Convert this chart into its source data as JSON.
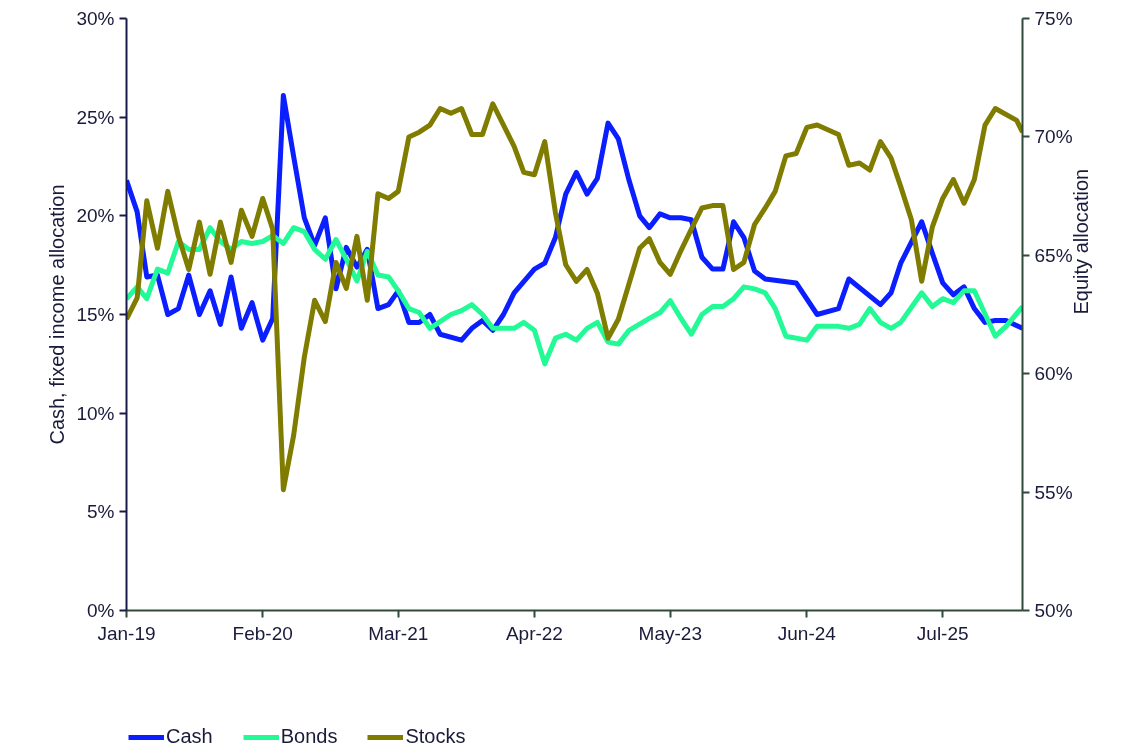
{
  "chart_data": {
    "type": "line",
    "xlabel": null,
    "ylabel": "Cash, fixed income allocation",
    "y2label": "Equity allocation",
    "xlim": [
      "2019-01",
      "2026-02-18"
    ],
    "xticks": [
      {
        "value": "2019-01",
        "label": "Jan-19"
      },
      {
        "value": "2020-02",
        "label": "Feb-20"
      },
      {
        "value": "2021-03",
        "label": "Mar-21"
      },
      {
        "value": "2022-04",
        "label": "Apr-22"
      },
      {
        "value": "2023-05",
        "label": "May-23"
      },
      {
        "value": "2024-06",
        "label": "Jun-24"
      },
      {
        "value": "2025-07",
        "label": "Jul-25"
      }
    ],
    "ylim": [
      0,
      30
    ],
    "yticks": [
      {
        "value": 0,
        "label": "0%"
      },
      {
        "value": 5,
        "label": "5%"
      },
      {
        "value": 10,
        "label": "10%"
      },
      {
        "value": 15,
        "label": "15%"
      },
      {
        "value": 20,
        "label": "20%"
      },
      {
        "value": 25,
        "label": "25%"
      },
      {
        "value": 30,
        "label": "30%"
      }
    ],
    "y2lim": [
      50,
      75
    ],
    "y2ticks": [
      {
        "value": 50,
        "label": "50%"
      },
      {
        "value": 55,
        "label": "55%"
      },
      {
        "value": 60,
        "label": "60%"
      },
      {
        "value": 65,
        "label": "65%"
      },
      {
        "value": 70,
        "label": "70%"
      },
      {
        "value": 75,
        "label": "75%"
      }
    ],
    "grid": false,
    "legend": "bottom left",
    "marker": "none",
    "line_style": "solid",
    "series": [
      {
        "name": "Cash",
        "color": "#0a1eff",
        "x": [
          "2019-01",
          "2019-02",
          "2019-03",
          "2019-04",
          "2019-05",
          "2019-06",
          "2019-07",
          "2019-08",
          "2019-09",
          "2019-10",
          "2019-11",
          "2019-12",
          "2020-01",
          "2020-02",
          "2020-03",
          "2020-04",
          "2020-05",
          "2020-06",
          "2020-07",
          "2020-08",
          "2020-09",
          "2020-10",
          "2020-11",
          "2020-12",
          "2021-01",
          "2021-02",
          "2021-03",
          "2021-04",
          "2021-05",
          "2021-06",
          "2021-07",
          "2021-09",
          "2021-10",
          "2021-11",
          "2021-12",
          "2022-01",
          "2022-02",
          "2022-04",
          "2022-05",
          "2022-06",
          "2022-07",
          "2022-08",
          "2022-09",
          "2022-10",
          "2022-11",
          "2022-12",
          "2023-01",
          "2023-02",
          "2023-03",
          "2023-04",
          "2023-05",
          "2023-06",
          "2023-07",
          "2023-08",
          "2023-09",
          "2023-10",
          "2023-11",
          "2023-12",
          "2024-01",
          "2024-02",
          "2024-05",
          "2024-07",
          "2024-09",
          "2024-10",
          "2025-01",
          "2025-02",
          "2025-03",
          "2025-05",
          "2025-06",
          "2025-07",
          "2025-08",
          "2025-09",
          "2025-10",
          "2025-11",
          "2025-12",
          "2026-01",
          "2026-02-18"
        ],
        "values": [
          21.8,
          20.2,
          16.9,
          17.0,
          15.0,
          15.3,
          17.0,
          15.0,
          16.2,
          14.5,
          16.9,
          14.3,
          15.6,
          13.7,
          14.8,
          26.1,
          23.0,
          19.9,
          18.5,
          19.9,
          16.3,
          18.4,
          17.4,
          18.3,
          15.3,
          15.5,
          16.2,
          14.6,
          14.6,
          15.0,
          14.0,
          13.7,
          14.3,
          14.7,
          14.2,
          15.0,
          16.1,
          17.3,
          17.6,
          18.9,
          21.1,
          22.2,
          21.1,
          21.9,
          24.7,
          23.9,
          21.8,
          20.0,
          19.4,
          20.1,
          19.9,
          19.9,
          19.8,
          17.9,
          17.3,
          17.3,
          19.7,
          18.9,
          17.2,
          16.8,
          16.6,
          15.0,
          15.3,
          16.8,
          15.5,
          16.1,
          17.6,
          19.7,
          18.1,
          16.6,
          16.0,
          16.4,
          15.3,
          14.6,
          14.7,
          14.7,
          14.3
        ]
      },
      {
        "name": "Bonds",
        "color": "#22fa96",
        "x": [
          "2019-01",
          "2019-02",
          "2019-03",
          "2019-04",
          "2019-05",
          "2019-06",
          "2019-07",
          "2019-08",
          "2019-09",
          "2019-10",
          "2019-11",
          "2019-12",
          "2020-01",
          "2020-02",
          "2020-03",
          "2020-04",
          "2020-05",
          "2020-06",
          "2020-07",
          "2020-08",
          "2020-09",
          "2020-10",
          "2020-11",
          "2020-12",
          "2021-01",
          "2021-02",
          "2021-03",
          "2021-04",
          "2021-05",
          "2021-06",
          "2021-08",
          "2021-09",
          "2021-10",
          "2021-11",
          "2021-12",
          "2022-02",
          "2022-03",
          "2022-04",
          "2022-05",
          "2022-06",
          "2022-07",
          "2022-08",
          "2022-09",
          "2022-10",
          "2022-11",
          "2022-12",
          "2023-01",
          "2023-03",
          "2023-04",
          "2023-05",
          "2023-06",
          "2023-07",
          "2023-08",
          "2023-09",
          "2023-10",
          "2023-11",
          "2023-12",
          "2024-01",
          "2024-02",
          "2024-03",
          "2024-04",
          "2024-06",
          "2024-07",
          "2024-09",
          "2024-10",
          "2024-11",
          "2024-12",
          "2025-01",
          "2025-02",
          "2025-03",
          "2025-05",
          "2025-06",
          "2025-07",
          "2025-08",
          "2025-09",
          "2025-10",
          "2025-12",
          "2026-01",
          "2026-02-18"
        ],
        "values": [
          15.8,
          16.4,
          15.8,
          17.3,
          17.1,
          18.7,
          18.3,
          18.3,
          19.4,
          18.7,
          18.3,
          18.7,
          18.6,
          18.7,
          19.0,
          18.6,
          19.4,
          19.2,
          18.3,
          17.8,
          18.8,
          17.8,
          16.7,
          18.2,
          17.0,
          16.9,
          16.2,
          15.3,
          15.1,
          14.3,
          15.0,
          15.2,
          15.5,
          15.0,
          14.3,
          14.3,
          14.6,
          14.2,
          12.5,
          13.8,
          14.0,
          13.7,
          14.3,
          14.6,
          13.6,
          13.5,
          14.2,
          14.8,
          15.1,
          15.7,
          14.8,
          14.0,
          15.0,
          15.4,
          15.4,
          15.8,
          16.4,
          16.3,
          16.1,
          15.3,
          13.9,
          13.7,
          14.4,
          14.4,
          14.3,
          14.5,
          15.3,
          14.6,
          14.3,
          14.6,
          16.1,
          15.4,
          15.8,
          15.6,
          16.2,
          16.2,
          13.9,
          14.4,
          15.4
        ]
      },
      {
        "name": "Stocks",
        "color": "#7f7c00",
        "axis": "y2",
        "x": [
          "2019-01",
          "2019-02",
          "2019-03",
          "2019-04",
          "2019-05",
          "2019-06",
          "2019-07",
          "2019-08",
          "2019-09",
          "2019-10",
          "2019-11",
          "2019-12",
          "2020-01",
          "2020-02",
          "2020-03",
          "2020-04",
          "2020-05",
          "2020-06",
          "2020-07",
          "2020-08",
          "2020-09",
          "2020-10",
          "2020-11",
          "2020-12",
          "2021-01",
          "2021-02",
          "2021-03",
          "2021-04",
          "2021-05",
          "2021-06",
          "2021-07",
          "2021-08",
          "2021-09",
          "2021-10",
          "2021-11",
          "2021-12",
          "2022-02",
          "2022-03",
          "2022-04",
          "2022-05",
          "2022-06",
          "2022-07",
          "2022-08",
          "2022-09",
          "2022-10",
          "2022-11",
          "2022-12",
          "2023-01",
          "2023-02",
          "2023-03",
          "2023-04",
          "2023-05",
          "2023-06",
          "2023-07",
          "2023-08",
          "2023-09",
          "2023-10",
          "2023-11",
          "2023-12",
          "2024-01",
          "2024-02",
          "2024-03",
          "2024-04",
          "2024-05",
          "2024-06",
          "2024-07",
          "2024-09",
          "2024-10",
          "2024-11",
          "2024-12",
          "2025-01",
          "2025-02",
          "2025-03",
          "2025-04",
          "2025-05",
          "2025-06",
          "2025-07",
          "2025-08",
          "2025-09",
          "2025-10",
          "2025-11",
          "2025-12",
          "2026-02",
          "2026-02-18"
        ],
        "values": [
          62.3,
          63.2,
          67.3,
          65.3,
          67.7,
          65.8,
          64.4,
          66.4,
          64.2,
          66.4,
          64.7,
          66.9,
          65.8,
          67.4,
          66.1,
          55.1,
          57.4,
          60.7,
          63.1,
          62.2,
          64.7,
          63.6,
          65.8,
          63.1,
          67.6,
          67.4,
          67.7,
          70.0,
          70.2,
          70.5,
          71.2,
          71.0,
          71.2,
          70.1,
          70.1,
          71.4,
          69.6,
          68.5,
          68.4,
          69.8,
          66.8,
          64.6,
          63.9,
          64.4,
          63.4,
          61.5,
          62.3,
          63.8,
          65.3,
          65.7,
          64.7,
          64.2,
          65.2,
          66.1,
          67.0,
          67.1,
          67.1,
          64.4,
          64.7,
          66.3,
          67.0,
          67.7,
          69.2,
          69.3,
          70.4,
          70.5,
          70.1,
          68.8,
          68.9,
          68.6,
          69.8,
          69.1,
          67.9,
          66.5,
          63.9,
          66.2,
          67.4,
          68.2,
          67.2,
          68.2,
          70.5,
          71.2,
          70.7,
          70.2
        ]
      }
    ]
  }
}
